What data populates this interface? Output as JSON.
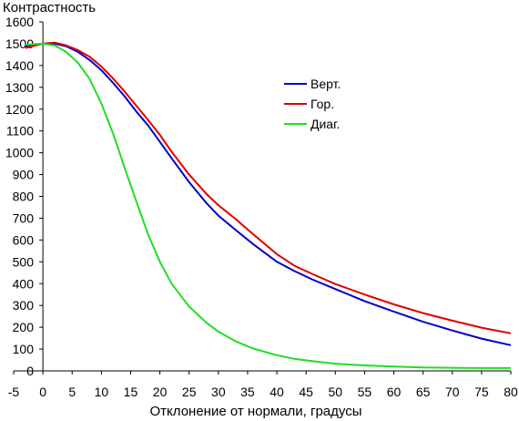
{
  "chart_data": {
    "type": "line",
    "title": "",
    "ylabel": "Контрастность",
    "xlabel": "Отклонение от нормали, градусы",
    "xlim": [
      -5,
      80
    ],
    "ylim": [
      0,
      1600
    ],
    "x_ticks": [
      -5,
      0,
      5,
      10,
      15,
      20,
      25,
      30,
      35,
      40,
      45,
      50,
      55,
      60,
      65,
      70,
      75,
      80
    ],
    "y_ticks": [
      0,
      100,
      200,
      300,
      400,
      500,
      600,
      700,
      800,
      900,
      1000,
      1100,
      1200,
      1300,
      1400,
      1500,
      1600
    ],
    "grid": false,
    "legend_position": "upper-right",
    "series": [
      {
        "name": "Верт.",
        "color": "#0000cc",
        "x": [
          -3,
          0,
          2,
          4,
          6,
          8,
          10,
          12,
          14,
          16,
          18,
          20,
          22,
          25,
          28,
          30,
          33,
          36,
          40,
          43,
          46,
          50,
          55,
          60,
          65,
          70,
          75,
          80
        ],
        "y": [
          1488,
          1500,
          1500,
          1488,
          1462,
          1425,
          1378,
          1320,
          1258,
          1188,
          1125,
          1050,
          975,
          865,
          768,
          712,
          645,
          580,
          500,
          458,
          420,
          375,
          320,
          272,
          225,
          185,
          148,
          118
        ]
      },
      {
        "name": "Гор.",
        "color": "#dd0000",
        "x": [
          -3,
          0,
          2,
          4,
          6,
          8,
          10,
          12,
          14,
          16,
          18,
          20,
          22,
          25,
          28,
          30,
          33,
          36,
          40,
          43,
          46,
          50,
          55,
          60,
          65,
          70,
          75,
          80
        ],
        "y": [
          1480,
          1500,
          1505,
          1492,
          1470,
          1440,
          1395,
          1340,
          1280,
          1215,
          1150,
          1082,
          1005,
          900,
          810,
          760,
          695,
          625,
          535,
          482,
          445,
          398,
          350,
          305,
          265,
          230,
          198,
          172
        ]
      },
      {
        "name": "Диаг.",
        "color": "#22dd22",
        "x": [
          -3,
          0,
          2,
          4,
          6,
          8,
          10,
          12,
          14,
          16,
          18,
          20,
          22,
          25,
          28,
          30,
          33,
          36,
          40,
          43,
          46,
          50,
          55,
          60,
          65,
          70,
          75,
          80
        ],
        "y": [
          1495,
          1500,
          1492,
          1462,
          1412,
          1338,
          1225,
          1088,
          930,
          775,
          625,
          500,
          400,
          295,
          220,
          180,
          135,
          102,
          72,
          55,
          45,
          33,
          25,
          20,
          16,
          14,
          13,
          13
        ]
      }
    ]
  }
}
